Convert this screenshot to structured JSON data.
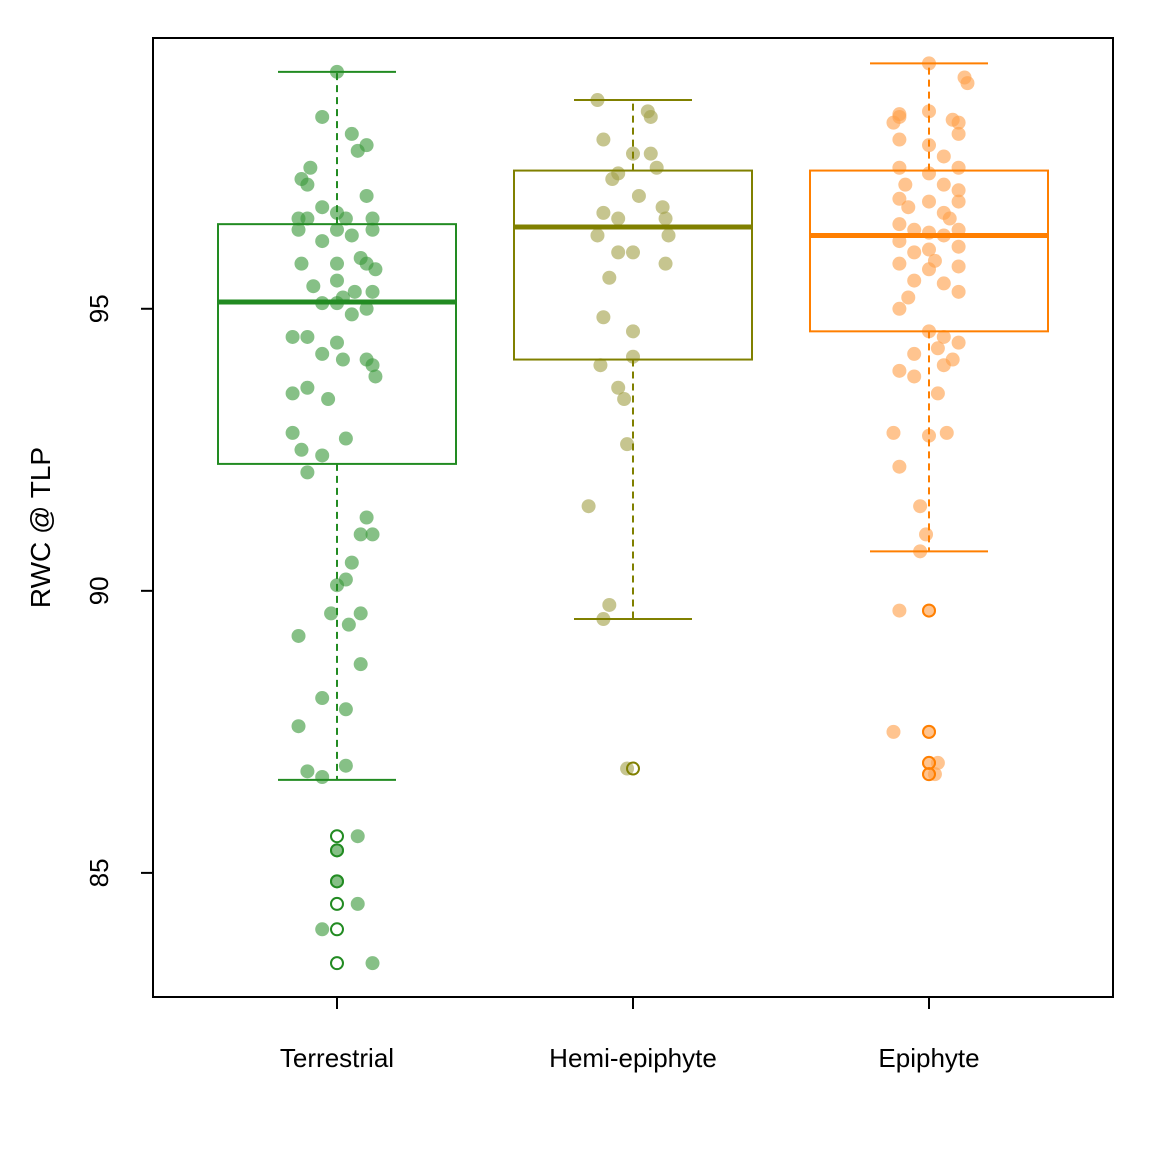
{
  "chart_data": {
    "type": "box",
    "ylabel": "RWC @ TLP",
    "xlabel": "",
    "ylim": [
      82.8,
      99.8
    ],
    "y_ticks": [
      85,
      90,
      95
    ],
    "categories": [
      "Terrestrial",
      "Hemi-epiphyte",
      "Epiphyte"
    ],
    "series": [
      {
        "color": "#228B22",
        "point_color": "#3c9a3c",
        "box": {
          "whisker_low": 86.65,
          "q1": 92.25,
          "median": 95.12,
          "q3": 96.5,
          "whisker_high": 99.2
        },
        "outliers": [
          85.65,
          85.4,
          84.85,
          84.45,
          84.0,
          83.4
        ],
        "points": [
          [
            0.0,
            99.2
          ],
          [
            -0.05,
            98.4
          ],
          [
            0.05,
            98.1
          ],
          [
            0.07,
            97.8
          ],
          [
            0.1,
            97.9
          ],
          [
            -0.09,
            97.5
          ],
          [
            -0.12,
            97.3
          ],
          [
            -0.1,
            97.2
          ],
          [
            0.1,
            97.0
          ],
          [
            -0.05,
            96.8
          ],
          [
            0.0,
            96.7
          ],
          [
            -0.1,
            96.6
          ],
          [
            -0.13,
            96.6
          ],
          [
            0.03,
            96.6
          ],
          [
            0.12,
            96.6
          ],
          [
            -0.13,
            96.4
          ],
          [
            0.0,
            96.4
          ],
          [
            0.12,
            96.4
          ],
          [
            0.05,
            96.3
          ],
          [
            -0.05,
            96.2
          ],
          [
            0.08,
            95.9
          ],
          [
            0.1,
            95.8
          ],
          [
            0.0,
            95.8
          ],
          [
            -0.12,
            95.8
          ],
          [
            0.13,
            95.7
          ],
          [
            0.0,
            95.5
          ],
          [
            -0.08,
            95.4
          ],
          [
            0.06,
            95.3
          ],
          [
            0.12,
            95.3
          ],
          [
            0.02,
            95.2
          ],
          [
            -0.05,
            95.1
          ],
          [
            0.0,
            95.1
          ],
          [
            0.1,
            95.0
          ],
          [
            0.05,
            94.9
          ],
          [
            -0.15,
            94.5
          ],
          [
            -0.1,
            94.5
          ],
          [
            0.0,
            94.4
          ],
          [
            -0.05,
            94.2
          ],
          [
            0.02,
            94.1
          ],
          [
            0.1,
            94.1
          ],
          [
            0.12,
            94.0
          ],
          [
            0.13,
            93.8
          ],
          [
            -0.15,
            93.5
          ],
          [
            -0.1,
            93.6
          ],
          [
            -0.03,
            93.4
          ],
          [
            -0.15,
            92.8
          ],
          [
            0.03,
            92.7
          ],
          [
            -0.12,
            92.5
          ],
          [
            -0.05,
            92.4
          ],
          [
            -0.1,
            92.1
          ],
          [
            0.1,
            91.3
          ],
          [
            0.08,
            91.0
          ],
          [
            0.12,
            91.0
          ],
          [
            0.05,
            90.5
          ],
          [
            0.03,
            90.2
          ],
          [
            0.0,
            90.1
          ],
          [
            -0.02,
            89.6
          ],
          [
            0.08,
            89.6
          ],
          [
            0.04,
            89.4
          ],
          [
            -0.13,
            89.2
          ],
          [
            0.08,
            88.7
          ],
          [
            -0.05,
            88.1
          ],
          [
            0.03,
            87.9
          ],
          [
            -0.13,
            87.6
          ],
          [
            0.03,
            86.9
          ],
          [
            -0.1,
            86.8
          ],
          [
            -0.05,
            86.7
          ],
          [
            0.07,
            85.65
          ],
          [
            0.0,
            85.4
          ],
          [
            0.0,
            84.85
          ],
          [
            0.07,
            84.45
          ],
          [
            -0.05,
            84.0
          ],
          [
            0.12,
            83.4
          ]
        ]
      },
      {
        "color": "#808000",
        "point_color": "#a3a24a",
        "box": {
          "whisker_low": 89.5,
          "q1": 94.1,
          "median": 96.45,
          "q3": 97.45,
          "whisker_high": 98.7
        },
        "outliers": [
          86.85
        ],
        "points": [
          [
            -0.12,
            98.7
          ],
          [
            0.05,
            98.5
          ],
          [
            0.06,
            98.4
          ],
          [
            -0.1,
            98.0
          ],
          [
            0.0,
            97.75
          ],
          [
            0.06,
            97.75
          ],
          [
            0.08,
            97.5
          ],
          [
            -0.07,
            97.3
          ],
          [
            -0.05,
            97.4
          ],
          [
            0.02,
            97.0
          ],
          [
            0.1,
            96.8
          ],
          [
            -0.1,
            96.7
          ],
          [
            -0.05,
            96.6
          ],
          [
            0.11,
            96.6
          ],
          [
            -0.12,
            96.3
          ],
          [
            0.12,
            96.3
          ],
          [
            -0.05,
            96.0
          ],
          [
            0.0,
            96.0
          ],
          [
            0.11,
            95.8
          ],
          [
            -0.08,
            95.55
          ],
          [
            -0.1,
            94.85
          ],
          [
            0.0,
            94.6
          ],
          [
            0.0,
            94.15
          ],
          [
            -0.11,
            94.0
          ],
          [
            -0.05,
            93.6
          ],
          [
            -0.03,
            93.4
          ],
          [
            -0.02,
            92.6
          ],
          [
            -0.15,
            91.5
          ],
          [
            -0.08,
            89.75
          ],
          [
            -0.1,
            89.5
          ],
          [
            -0.02,
            86.85
          ]
        ]
      },
      {
        "color": "#FF7F00",
        "point_color": "#ffa04a",
        "box": {
          "whisker_low": 90.7,
          "q1": 94.6,
          "median": 96.3,
          "q3": 97.45,
          "whisker_high": 99.35
        },
        "outliers": [
          89.65,
          87.5,
          86.95,
          86.75
        ],
        "points": [
          [
            0.0,
            99.35
          ],
          [
            0.12,
            99.1
          ],
          [
            0.13,
            99.0
          ],
          [
            -0.1,
            98.45
          ],
          [
            -0.1,
            98.4
          ],
          [
            0.0,
            98.5
          ],
          [
            0.08,
            98.35
          ],
          [
            0.1,
            98.3
          ],
          [
            -0.12,
            98.3
          ],
          [
            -0.1,
            98.0
          ],
          [
            0.1,
            98.1
          ],
          [
            0.0,
            97.9
          ],
          [
            0.05,
            97.7
          ],
          [
            -0.1,
            97.5
          ],
          [
            0.1,
            97.5
          ],
          [
            0.0,
            97.4
          ],
          [
            -0.08,
            97.2
          ],
          [
            0.05,
            97.2
          ],
          [
            0.1,
            97.1
          ],
          [
            -0.1,
            96.95
          ],
          [
            0.0,
            96.9
          ],
          [
            0.1,
            96.9
          ],
          [
            -0.07,
            96.8
          ],
          [
            0.05,
            96.7
          ],
          [
            0.07,
            96.6
          ],
          [
            -0.1,
            96.5
          ],
          [
            0.1,
            96.4
          ],
          [
            -0.05,
            96.4
          ],
          [
            0.0,
            96.35
          ],
          [
            0.05,
            96.3
          ],
          [
            -0.1,
            96.2
          ],
          [
            0.1,
            96.1
          ],
          [
            0.0,
            96.05
          ],
          [
            -0.05,
            96.0
          ],
          [
            0.02,
            95.85
          ],
          [
            -0.1,
            95.8
          ],
          [
            0.1,
            95.75
          ],
          [
            0.0,
            95.7
          ],
          [
            -0.05,
            95.5
          ],
          [
            0.05,
            95.45
          ],
          [
            0.1,
            95.3
          ],
          [
            -0.07,
            95.2
          ],
          [
            -0.1,
            95.0
          ],
          [
            0.0,
            94.6
          ],
          [
            0.05,
            94.5
          ],
          [
            0.1,
            94.4
          ],
          [
            0.03,
            94.3
          ],
          [
            -0.05,
            94.2
          ],
          [
            0.08,
            94.1
          ],
          [
            0.05,
            94.0
          ],
          [
            -0.1,
            93.9
          ],
          [
            -0.05,
            93.8
          ],
          [
            0.03,
            93.5
          ],
          [
            -0.12,
            92.8
          ],
          [
            0.0,
            92.75
          ],
          [
            0.06,
            92.8
          ],
          [
            -0.1,
            92.2
          ],
          [
            -0.03,
            91.5
          ],
          [
            -0.01,
            91.0
          ],
          [
            -0.03,
            90.7
          ],
          [
            -0.1,
            89.65
          ],
          [
            0.0,
            89.65
          ],
          [
            -0.12,
            87.5
          ],
          [
            0.0,
            87.5
          ],
          [
            0.0,
            86.95
          ],
          [
            0.03,
            86.95
          ],
          [
            0.0,
            86.75
          ],
          [
            0.02,
            86.75
          ]
        ]
      }
    ]
  }
}
